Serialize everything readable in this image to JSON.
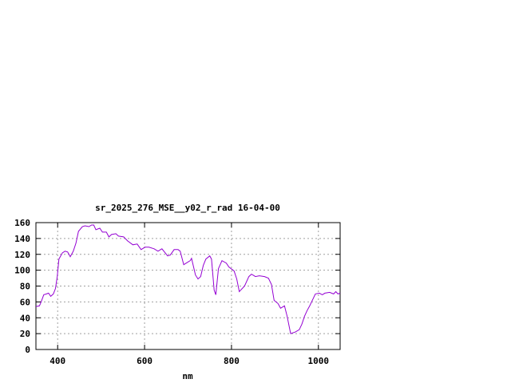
{
  "chart_data": {
    "type": "line",
    "title": "sr_2025_276_MSE__y02_r_rad 16-04-00",
    "xlabel": "nm",
    "ylabel": "",
    "xlim": [
      350,
      1050
    ],
    "ylim": [
      0,
      160
    ],
    "xticks": [
      400,
      600,
      800,
      1000
    ],
    "yticks": [
      0,
      20,
      40,
      60,
      80,
      100,
      120,
      140,
      160
    ],
    "grid": true,
    "line_color": "#9400d3",
    "series": [
      {
        "x": [
          350,
          358,
          362,
          368,
          374,
          379,
          384,
          390,
          395,
          399,
          403,
          411,
          417,
          423,
          429,
          436,
          442,
          448,
          457,
          463,
          472,
          478,
          483,
          488,
          497,
          503,
          512,
          518,
          524,
          534,
          540,
          552,
          561,
          573,
          583,
          592,
          601,
          610,
          622,
          631,
          640,
          653,
          659,
          668,
          677,
          682,
          690,
          696,
          705,
          708,
          717,
          723,
          729,
          735,
          741,
          750,
          754,
          760,
          764,
          770,
          778,
          788,
          794,
          806,
          812,
          818,
          830,
          840,
          846,
          855,
          864,
          876,
          885,
          892,
          898,
          907,
          913,
          922,
          928,
          936,
          947,
          956,
          962,
          968,
          974,
          980,
          993,
          1002,
          1009,
          1015,
          1026,
          1035,
          1040,
          1045,
          1050
        ],
        "y": [
          54,
          55,
          60,
          69,
          70,
          71,
          67,
          70,
          77,
          92,
          114,
          122,
          124,
          123,
          117,
          124,
          134,
          149,
          155,
          156,
          155,
          157,
          157,
          151,
          153,
          148,
          148,
          142,
          145,
          146,
          143,
          142,
          137,
          132,
          133,
          126,
          129,
          129,
          127,
          124,
          127,
          118,
          119,
          126,
          126,
          124,
          107,
          109,
          112,
          115,
          94,
          89,
          92,
          106,
          114,
          118,
          114,
          75,
          69,
          102,
          112,
          109,
          104,
          99,
          89,
          73,
          80,
          92,
          95,
          92,
          93,
          92,
          90,
          82,
          62,
          58,
          52,
          55,
          42,
          20,
          22,
          25,
          32,
          42,
          49,
          55,
          70,
          71,
          69,
          71,
          72,
          70,
          73,
          70,
          71
        ]
      }
    ]
  }
}
